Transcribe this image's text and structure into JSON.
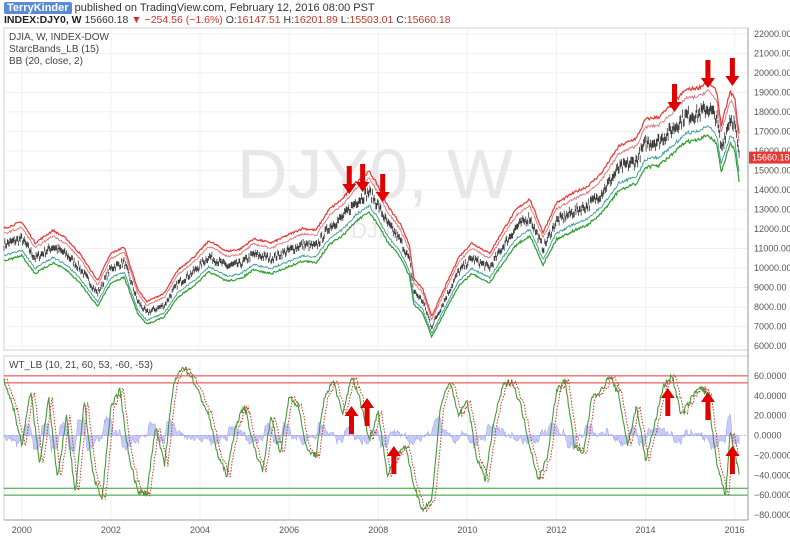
{
  "header": {
    "author": "TerryKinder",
    "published": "published on TradingView.com, February 12, 2016 08:00 PST",
    "symbol": "INDEX:DJY0, W",
    "last": "15660.18",
    "change": "▼ −254.56 (−1.6%)",
    "o_label": "O:",
    "o_value": "16147.51",
    "h_label": "H:",
    "h_value": "16201.89",
    "l_label": "L:",
    "l_value": "15503.01",
    "c_label": "C:",
    "c_value": "15660.18"
  },
  "chart_data": [
    {
      "type": "line",
      "legend": [
        "DJIA, W, INDEX-DOW",
        "StarcBands_LB (15)",
        "BB (20, close, 2)"
      ],
      "watermark": "DJY0, W",
      "watermark_sub": "DJIA",
      "last_price_label": "15660.18",
      "x_ticks": [
        "2000",
        "2002",
        "2004",
        "2006",
        "2008",
        "2010",
        "2012",
        "2014",
        "2016"
      ],
      "xlim": [
        1999.6,
        2016.3
      ],
      "ylim": [
        5800,
        22300
      ],
      "y_ticks": [
        "22000.00",
        "21000.00",
        "20000.00",
        "19000.00",
        "18000.00",
        "17000.00",
        "16000.00",
        "15000.00",
        "14000.00",
        "13000.00",
        "12000.00",
        "11000.00",
        "10000.00",
        "9000.00",
        "8000.00",
        "7000.00",
        "6000.00"
      ],
      "y_tick_values": [
        22000,
        21000,
        20000,
        19000,
        18000,
        17000,
        16000,
        15000,
        14000,
        13000,
        12000,
        11000,
        10000,
        9000,
        8000,
        7000,
        6000
      ],
      "price_keypoints": [
        [
          1999.6,
          11200
        ],
        [
          2000.0,
          11500
        ],
        [
          2000.3,
          10500
        ],
        [
          2000.7,
          11100
        ],
        [
          2001.0,
          10700
        ],
        [
          2001.3,
          10000
        ],
        [
          2001.7,
          8700
        ],
        [
          2002.0,
          10000
        ],
        [
          2002.3,
          10300
        ],
        [
          2002.6,
          8300
        ],
        [
          2002.8,
          7700
        ],
        [
          2003.2,
          8100
        ],
        [
          2003.5,
          9200
        ],
        [
          2003.9,
          9900
        ],
        [
          2004.2,
          10600
        ],
        [
          2004.6,
          10100
        ],
        [
          2004.9,
          10200
        ],
        [
          2005.2,
          10700
        ],
        [
          2005.6,
          10500
        ],
        [
          2005.9,
          10800
        ],
        [
          2006.3,
          11200
        ],
        [
          2006.6,
          11100
        ],
        [
          2006.9,
          12100
        ],
        [
          2007.2,
          12600
        ],
        [
          2007.5,
          13400
        ],
        [
          2007.8,
          13900
        ],
        [
          2008.0,
          13200
        ],
        [
          2008.2,
          12300
        ],
        [
          2008.5,
          11400
        ],
        [
          2008.7,
          10400
        ],
        [
          2008.8,
          8800
        ],
        [
          2009.0,
          8300
        ],
        [
          2009.2,
          7000
        ],
        [
          2009.5,
          8400
        ],
        [
          2009.8,
          9800
        ],
        [
          2010.1,
          10500
        ],
        [
          2010.5,
          10000
        ],
        [
          2010.8,
          11100
        ],
        [
          2011.1,
          12100
        ],
        [
          2011.4,
          12600
        ],
        [
          2011.7,
          11000
        ],
        [
          2012.0,
          12400
        ],
        [
          2012.4,
          12900
        ],
        [
          2012.7,
          13200
        ],
        [
          2013.0,
          13800
        ],
        [
          2013.4,
          15100
        ],
        [
          2013.8,
          15500
        ],
        [
          2014.0,
          16400
        ],
        [
          2014.3,
          16500
        ],
        [
          2014.6,
          17100
        ],
        [
          2014.9,
          17800
        ],
        [
          2015.2,
          17900
        ],
        [
          2015.4,
          18200
        ],
        [
          2015.6,
          17700
        ],
        [
          2015.7,
          16100
        ],
        [
          2015.9,
          17700
        ],
        [
          2016.0,
          17400
        ],
        [
          2016.1,
          15660
        ]
      ],
      "arrows_down_x": [
        2007.35,
        2007.65,
        2008.1,
        2014.65,
        2015.4,
        2015.95
      ]
    },
    {
      "type": "line",
      "legend": "WT_LB (10, 21, 60, 53, -60, -53)",
      "xlim": [
        1999.6,
        2016.3
      ],
      "ylim": [
        -85,
        80
      ],
      "y_ticks": [
        "60.0000",
        "40.0000",
        "20.0000",
        "0.0000",
        "−20.0000",
        "−40.0000",
        "−60.0000",
        "−80.0000"
      ],
      "y_tick_values": [
        60,
        40,
        20,
        0,
        -20,
        -40,
        -60,
        -80
      ],
      "levels": [
        60,
        53,
        -53,
        -60
      ],
      "wt_keypoints": [
        [
          1999.6,
          55
        ],
        [
          1999.8,
          30
        ],
        [
          2000.0,
          -10
        ],
        [
          2000.2,
          45
        ],
        [
          2000.4,
          -30
        ],
        [
          2000.6,
          40
        ],
        [
          2000.8,
          -45
        ],
        [
          2001.0,
          20
        ],
        [
          2001.2,
          -60
        ],
        [
          2001.4,
          35
        ],
        [
          2001.6,
          -40
        ],
        [
          2001.8,
          -65
        ],
        [
          2002.0,
          30
        ],
        [
          2002.2,
          45
        ],
        [
          2002.4,
          -20
        ],
        [
          2002.6,
          -55
        ],
        [
          2002.8,
          -60
        ],
        [
          2003.0,
          10
        ],
        [
          2003.2,
          -30
        ],
        [
          2003.4,
          50
        ],
        [
          2003.6,
          70
        ],
        [
          2003.8,
          60
        ],
        [
          2004.0,
          40
        ],
        [
          2004.2,
          20
        ],
        [
          2004.4,
          -20
        ],
        [
          2004.6,
          -40
        ],
        [
          2004.8,
          10
        ],
        [
          2005.0,
          30
        ],
        [
          2005.2,
          -10
        ],
        [
          2005.4,
          -35
        ],
        [
          2005.6,
          20
        ],
        [
          2005.8,
          -20
        ],
        [
          2006.0,
          40
        ],
        [
          2006.2,
          30
        ],
        [
          2006.4,
          -15
        ],
        [
          2006.6,
          -20
        ],
        [
          2006.8,
          40
        ],
        [
          2007.0,
          55
        ],
        [
          2007.2,
          20
        ],
        [
          2007.4,
          60
        ],
        [
          2007.6,
          35
        ],
        [
          2007.8,
          -5
        ],
        [
          2008.0,
          25
        ],
        [
          2008.2,
          -40
        ],
        [
          2008.4,
          -20
        ],
        [
          2008.6,
          -10
        ],
        [
          2008.8,
          -50
        ],
        [
          2009.0,
          -75
        ],
        [
          2009.2,
          -65
        ],
        [
          2009.4,
          30
        ],
        [
          2009.6,
          55
        ],
        [
          2009.8,
          20
        ],
        [
          2010.0,
          35
        ],
        [
          2010.2,
          -20
        ],
        [
          2010.4,
          -45
        ],
        [
          2010.6,
          15
        ],
        [
          2010.8,
          50
        ],
        [
          2011.0,
          55
        ],
        [
          2011.2,
          30
        ],
        [
          2011.4,
          -10
        ],
        [
          2011.6,
          -45
        ],
        [
          2011.8,
          -20
        ],
        [
          2012.0,
          45
        ],
        [
          2012.2,
          55
        ],
        [
          2012.4,
          -10
        ],
        [
          2012.6,
          -20
        ],
        [
          2012.8,
          40
        ],
        [
          2013.0,
          45
        ],
        [
          2013.2,
          60
        ],
        [
          2013.4,
          40
        ],
        [
          2013.6,
          -10
        ],
        [
          2013.8,
          30
        ],
        [
          2014.0,
          -25
        ],
        [
          2014.2,
          10
        ],
        [
          2014.4,
          50
        ],
        [
          2014.6,
          60
        ],
        [
          2014.8,
          20
        ],
        [
          2015.0,
          35
        ],
        [
          2015.2,
          50
        ],
        [
          2015.4,
          40
        ],
        [
          2015.6,
          -30
        ],
        [
          2015.8,
          -60
        ],
        [
          2015.9,
          5
        ],
        [
          2016.0,
          -15
        ],
        [
          2016.1,
          -40
        ]
      ],
      "arrows_up_x": [
        2007.4,
        2007.75,
        2008.35,
        2014.5,
        2015.4,
        2015.95
      ]
    }
  ],
  "colors": {
    "price": "#3a3a3a",
    "bb_upper": "#e53935",
    "bb_lower": "#2e9e2e",
    "starc_upper": "#e0707a",
    "starc_lower": "#3c9a9a",
    "wt1": "#4a9a3a",
    "wt2": "#c0392b",
    "hist": "#9aa0f0",
    "arrow": "#e00000",
    "last_tag": "#e53935"
  }
}
